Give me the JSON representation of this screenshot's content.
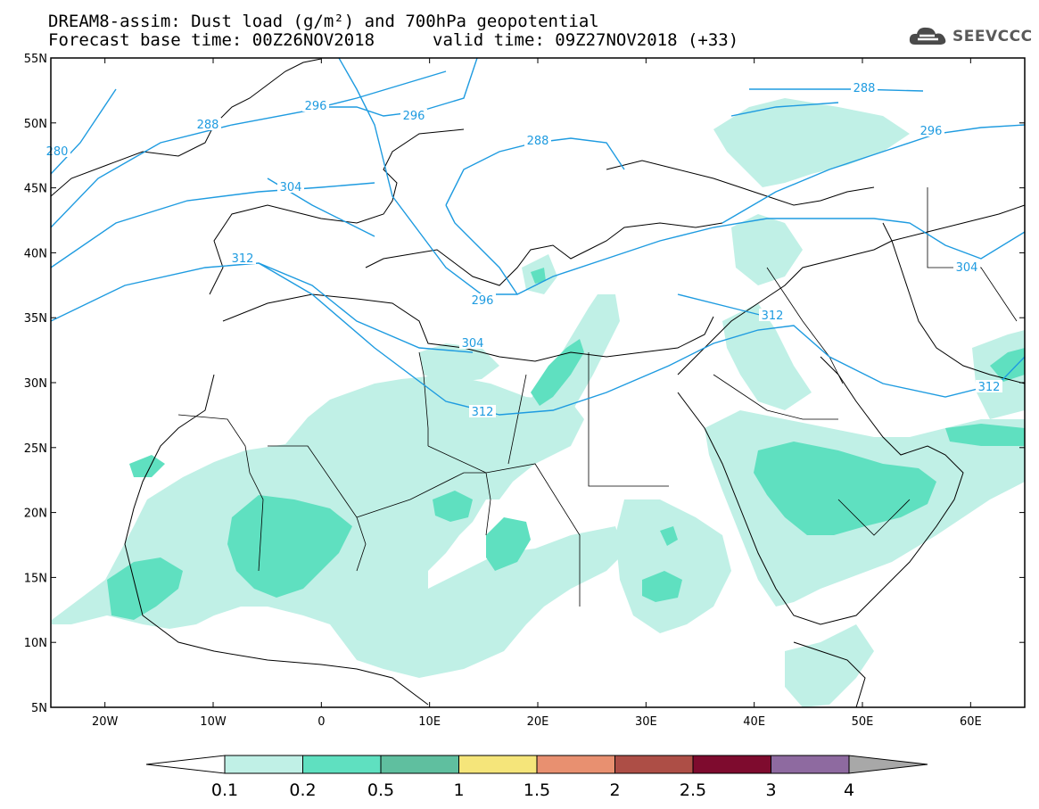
{
  "header": {
    "title_line1": "DREAM8-assim: Dust load (g/m²) and 700hPa geopotential",
    "base_time_text": "Forecast base time: 00Z26NOV2018",
    "valid_time_text": "valid time: 09Z27NOV2018 (+33)",
    "logo_text": "SEEVCCC",
    "logo_icon": "cloud-icon"
  },
  "map": {
    "lat_labels": [
      "55N",
      "50N",
      "45N",
      "40N",
      "35N",
      "30N",
      "25N",
      "20N",
      "15N",
      "10N",
      "5N"
    ],
    "lon_labels": [
      "20W",
      "10W",
      "0",
      "10E",
      "20E",
      "30E",
      "40E",
      "50E",
      "60E"
    ],
    "lon_range": [
      -25,
      65
    ],
    "lat_range": [
      5,
      55
    ],
    "contour_labels": [
      "280",
      "288",
      "296",
      "296",
      "288",
      "296",
      "288",
      "304",
      "304",
      "312",
      "296",
      "304",
      "312",
      "312",
      "312"
    ]
  },
  "colorbar": {
    "labels": [
      "0.1",
      "0.2",
      "0.5",
      "1",
      "1.5",
      "2",
      "2.5",
      "3",
      "4"
    ],
    "colors": [
      "#c0f0e6",
      "#5fe0c0",
      "#5fbf9f",
      "#f5e57a",
      "#e89070",
      "#ad4e46",
      "#7e0b2e",
      "#8e6aa0"
    ],
    "under_color": "#ffffff",
    "over_color": "#a8a8a8"
  }
}
